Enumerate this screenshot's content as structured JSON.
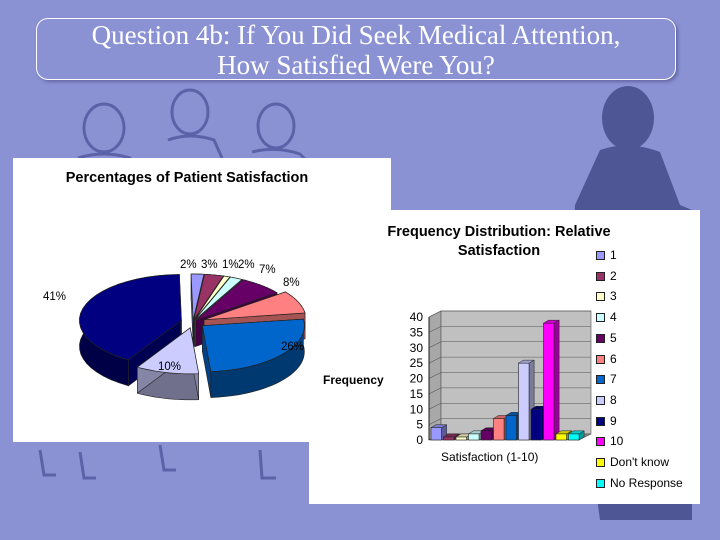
{
  "slide": {
    "title_line1": "Question 4b: If You Did Seek Medical Attention,",
    "title_line2": "How Satisfied Were You?"
  },
  "colors": {
    "background": "#8b92d4",
    "silhouette": "#4f5696",
    "silhouette_outline": "#5c62a8"
  },
  "chart_data": [
    {
      "type": "pie",
      "title": "Percentages of Patient Satisfaction",
      "slices": [
        {
          "label": "2%",
          "value": 2,
          "color": "#9999ff"
        },
        {
          "label": "3%",
          "value": 3,
          "color": "#993366"
        },
        {
          "label": "1%",
          "value": 1,
          "color": "#ffffcc"
        },
        {
          "label": "2%",
          "value": 2,
          "color": "#ccffff"
        },
        {
          "label": "7%",
          "value": 7,
          "color": "#660066"
        },
        {
          "label": "8%",
          "value": 8,
          "color": "#ff8080"
        },
        {
          "label": "26%",
          "value": 26,
          "color": "#0066cc"
        },
        {
          "label": "10%",
          "value": 10,
          "color": "#ccccff"
        },
        {
          "label": "41%",
          "value": 41,
          "color": "#000080"
        }
      ]
    },
    {
      "type": "bar",
      "title_line1": "Frequency Distribution: Relative",
      "title_line2": "Satisfaction",
      "xlabel": "Satisfaction (1-10)",
      "ylabel": "Frequency",
      "ylim": [
        0,
        40
      ],
      "yticks": [
        0,
        5,
        10,
        15,
        20,
        25,
        30,
        35,
        40
      ],
      "grid": true,
      "legend_position": "right",
      "series": [
        {
          "name": "1",
          "value": 4,
          "color": "#9999ff"
        },
        {
          "name": "2",
          "value": 1,
          "color": "#993366"
        },
        {
          "name": "3",
          "value": 1,
          "color": "#ffffcc"
        },
        {
          "name": "4",
          "value": 2,
          "color": "#ccffff"
        },
        {
          "name": "5",
          "value": 3,
          "color": "#660066"
        },
        {
          "name": "6",
          "value": 7,
          "color": "#ff8080"
        },
        {
          "name": "7",
          "value": 8,
          "color": "#0066cc"
        },
        {
          "name": "8",
          "value": 25,
          "color": "#ccccff"
        },
        {
          "name": "9",
          "value": 10,
          "color": "#000080"
        },
        {
          "name": "10",
          "value": 38,
          "color": "#ff00ff"
        },
        {
          "name": "Don't know",
          "value": 2,
          "color": "#ffff00"
        },
        {
          "name": "No Response",
          "value": 2,
          "color": "#00ffff"
        }
      ]
    }
  ]
}
